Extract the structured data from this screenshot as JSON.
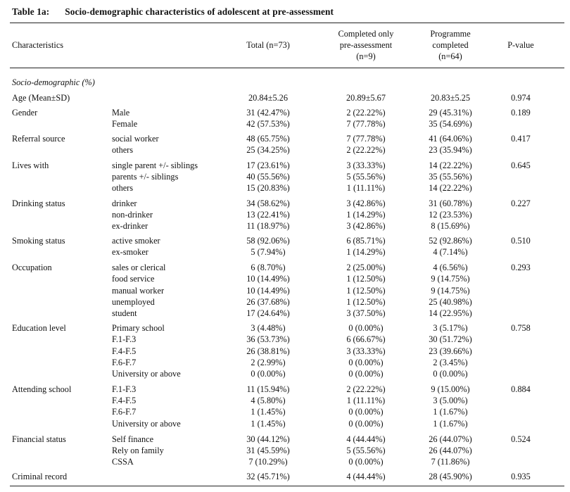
{
  "title": {
    "label": "Table 1a:",
    "text": "Socio-demographic characteristics of adolescent at pre-assessment"
  },
  "headers": {
    "characteristics": "Characteristics",
    "total": "Total (n=73)",
    "pre": [
      "Completed only",
      "pre-assessment",
      "(n=9)"
    ],
    "programme": [
      "Programme",
      "completed",
      "(n=64)"
    ],
    "pvalue": "P-value"
  },
  "section": "Socio-demographic (%)",
  "rows": [
    {
      "main": "Age (Mean±SD)",
      "sub": "",
      "total": "20.84±5.26",
      "pre": "20.89±5.67",
      "prog": "20.83±5.25",
      "p": "0.974"
    },
    {
      "main": "Gender",
      "sub": "Male",
      "total": "31 (42.47%)",
      "pre": "2 (22.22%)",
      "prog": "29 (45.31%)",
      "p": "0.189"
    },
    {
      "main": "",
      "sub": "Female",
      "total": "42 (57.53%)",
      "pre": "7 (77.78%)",
      "prog": "35 (54.69%)",
      "p": ""
    },
    {
      "main": "Referral source",
      "sub": "social worker",
      "total": "48 (65.75%)",
      "pre": "7 (77.78%)",
      "prog": "41 (64.06%)",
      "p": "0.417"
    },
    {
      "main": "",
      "sub": "others",
      "total": "25 (34.25%)",
      "pre": "2 (22.22%)",
      "prog": "23 (35.94%)",
      "p": ""
    },
    {
      "main": "Lives with",
      "sub": "single parent +/- siblings",
      "total": "17 (23.61%)",
      "pre": "3 (33.33%)",
      "prog": "14 (22.22%)",
      "p": "0.645"
    },
    {
      "main": "",
      "sub": "parents +/- siblings",
      "total": "40 (55.56%)",
      "pre": "5 (55.56%)",
      "prog": "35 (55.56%)",
      "p": ""
    },
    {
      "main": "",
      "sub": "others",
      "total": "15 (20.83%)",
      "pre": "1 (11.11%)",
      "prog": "14 (22.22%)",
      "p": ""
    },
    {
      "main": "Drinking status",
      "sub": "drinker",
      "total": "34 (58.62%)",
      "pre": "3 (42.86%)",
      "prog": "31 (60.78%)",
      "p": "0.227"
    },
    {
      "main": "",
      "sub": "non-drinker",
      "total": "13 (22.41%)",
      "pre": "1 (14.29%)",
      "prog": "12 (23.53%)",
      "p": ""
    },
    {
      "main": "",
      "sub": "ex-drinker",
      "total": "11 (18.97%)",
      "pre": "3 (42.86%)",
      "prog": "8 (15.69%)",
      "p": ""
    },
    {
      "main": "Smoking status",
      "sub": "active smoker",
      "total": "58 (92.06%)",
      "pre": "6 (85.71%)",
      "prog": "52 (92.86%)",
      "p": "0.510"
    },
    {
      "main": "",
      "sub": "ex-smoker",
      "total": "5 (7.94%)",
      "pre": "1 (14.29%)",
      "prog": "4 (7.14%)",
      "p": ""
    },
    {
      "main": "Occupation",
      "sub": "sales or clerical",
      "total": "6 (8.70%)",
      "pre": "2 (25.00%)",
      "prog": "4 (6.56%)",
      "p": "0.293"
    },
    {
      "main": "",
      "sub": "food service",
      "total": "10 (14.49%)",
      "pre": "1 (12.50%)",
      "prog": "9 (14.75%)",
      "p": ""
    },
    {
      "main": "",
      "sub": "manual worker",
      "total": "10 (14.49%)",
      "pre": "1 (12.50%)",
      "prog": "9 (14.75%)",
      "p": ""
    },
    {
      "main": "",
      "sub": "unemployed",
      "total": "26 (37.68%)",
      "pre": "1 (12.50%)",
      "prog": "25 (40.98%)",
      "p": ""
    },
    {
      "main": "",
      "sub": "student",
      "total": "17 (24.64%)",
      "pre": "3 (37.50%)",
      "prog": "14 (22.95%)",
      "p": ""
    },
    {
      "main": "Education level",
      "sub": "Primary school",
      "total": "3 (4.48%)",
      "pre": "0 (0.00%)",
      "prog": "3 (5.17%)",
      "p": "0.758"
    },
    {
      "main": "",
      "sub": "F.1-F.3",
      "total": "36 (53.73%)",
      "pre": "6 (66.67%)",
      "prog": "30 (51.72%)",
      "p": ""
    },
    {
      "main": "",
      "sub": "F.4-F.5",
      "total": "26 (38.81%)",
      "pre": "3 (33.33%)",
      "prog": "23 (39.66%)",
      "p": ""
    },
    {
      "main": "",
      "sub": "F.6-F.7",
      "total": "2 (2.99%)",
      "pre": "0 (0.00%)",
      "prog": "2 (3.45%)",
      "p": ""
    },
    {
      "main": "",
      "sub": "University or above",
      "total": "0 (0.00%)",
      "pre": "0 (0.00%)",
      "prog": "0 (0.00%)",
      "p": ""
    },
    {
      "main": "Attending school",
      "sub": "F.1-F.3",
      "total": "11 (15.94%)",
      "pre": "2 (22.22%)",
      "prog": "9 (15.00%)",
      "p": "0.884"
    },
    {
      "main": "",
      "sub": "F.4-F.5",
      "total": "4 (5.80%)",
      "pre": "1 (11.11%)",
      "prog": "3 (5.00%)",
      "p": ""
    },
    {
      "main": "",
      "sub": "F.6-F.7",
      "total": "1 (1.45%)",
      "pre": "0 (0.00%)",
      "prog": "1 (1.67%)",
      "p": ""
    },
    {
      "main": "",
      "sub": "University or above",
      "total": "1 (1.45%)",
      "pre": "0 (0.00%)",
      "prog": "1 (1.67%)",
      "p": ""
    },
    {
      "main": "Financial status",
      "sub": "Self finance",
      "total": "30 (44.12%)",
      "pre": "4 (44.44%)",
      "prog": "26 (44.07%)",
      "p": "0.524"
    },
    {
      "main": "",
      "sub": "Rely on family",
      "total": "31 (45.59%)",
      "pre": "5 (55.56%)",
      "prog": "26 (44.07%)",
      "p": ""
    },
    {
      "main": "",
      "sub": "CSSA",
      "total": "7 (10.29%)",
      "pre": "0 (0.00%)",
      "prog": "7 (11.86%)",
      "p": ""
    },
    {
      "main": "Criminal record",
      "sub": "",
      "total": "32 (45.71%)",
      "pre": "4 (44.44%)",
      "prog": "28 (45.90%)",
      "p": "0.935"
    }
  ]
}
